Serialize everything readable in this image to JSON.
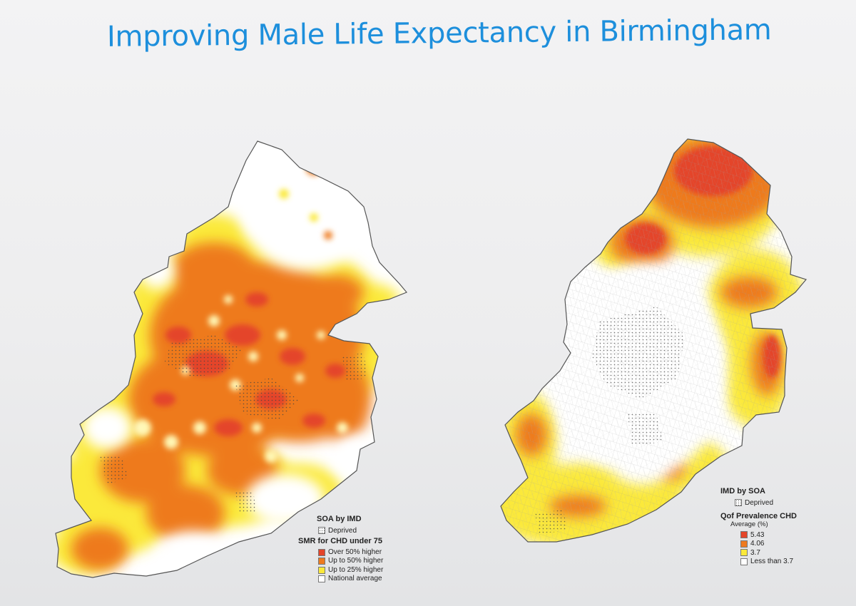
{
  "slide": {
    "title": "Improving Male Life Expectancy in Birmingham"
  },
  "left_map": {
    "legend": {
      "layer_title": "SOA by IMD",
      "layer_item": "Deprived",
      "scale_title": "SMR for CHD under 75",
      "items": [
        {
          "label": "Over 50% higher",
          "color": "#e4452a"
        },
        {
          "label": "Up to 50% higher",
          "color": "#ee7a1f"
        },
        {
          "label": "Up to 25% higher",
          "color": "#fbe93a"
        },
        {
          "label": "National average",
          "color": "#ffffff"
        }
      ]
    }
  },
  "right_map": {
    "legend": {
      "layer_title": "IMD by SOA",
      "layer_item": "Deprived",
      "scale_title": "Qof Prevalence CHD",
      "scale_subtitle": "Average (%)",
      "items": [
        {
          "label": "5.43",
          "color": "#e4452a"
        },
        {
          "label": "4.06",
          "color": "#ee7a1f"
        },
        {
          "label": "3.7",
          "color": "#fbe93a"
        },
        {
          "label": "Less than 3.7",
          "color": "#ffffff"
        }
      ]
    }
  },
  "colors": {
    "title": "#1d8fdc",
    "high": "#e4452a",
    "mid": "#ee7a1f",
    "low": "#fbe93a",
    "outline": "#555555"
  }
}
